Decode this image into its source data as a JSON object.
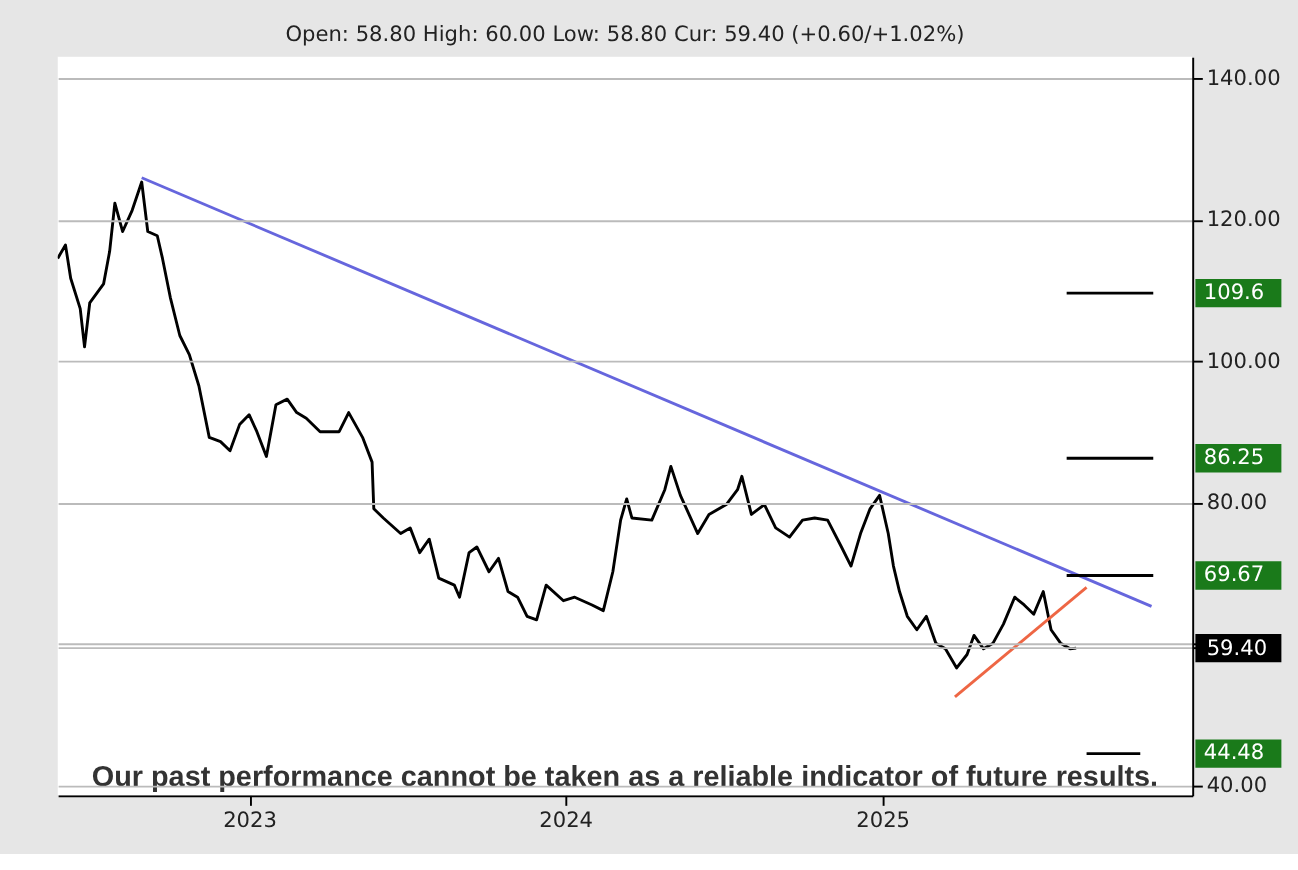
{
  "chart_data": {
    "type": "line",
    "subtitle": "Open: 58.80 High: 60.00 Low: 58.80 Cur: 59.40 (+0.60/+1.02%)",
    "xlim": [
      "2022-05-25",
      "2025-12-25"
    ],
    "xticks": [
      {
        "value": "2023-01-01",
        "label": "2023"
      },
      {
        "value": "2024-01-01",
        "label": "2024"
      },
      {
        "value": "2025-01-01",
        "label": "2025"
      }
    ],
    "ylim": [
      38.6,
      143
    ],
    "yticks": [
      {
        "value": 140,
        "label": "140.00"
      },
      {
        "value": 120,
        "label": "120.00"
      },
      {
        "value": 100,
        "label": "100.00"
      },
      {
        "value": 80,
        "label": "80.00"
      },
      {
        "value": 60,
        "label": null
      },
      {
        "value": 59.4,
        "label": "59.40"
      },
      {
        "value": 40,
        "label": "40.00"
      }
    ],
    "grid": true,
    "line_style": "solid",
    "marker": "none",
    "series": [
      {
        "color": "#000000",
        "x": [
          "2022-05-25",
          "2022-06-03",
          "2022-06-09",
          "2022-06-20",
          "2022-06-25",
          "2022-07-01",
          "2022-07-17",
          "2022-07-24",
          "2022-07-30",
          "2022-08-08",
          "2022-08-19",
          "2022-08-30",
          "2022-09-06",
          "2022-09-17",
          "2022-09-23",
          "2022-10-02",
          "2022-10-13",
          "2022-10-24",
          "2022-11-04",
          "2022-11-16",
          "2022-11-29",
          "2022-12-10",
          "2022-12-21",
          "2023-01-01",
          "2023-01-10",
          "2023-01-21",
          "2023-02-01",
          "2023-02-14",
          "2023-02-25",
          "2023-03-08",
          "2023-03-24",
          "2023-04-15",
          "2023-04-26",
          "2023-05-12",
          "2023-05-23",
          "2023-05-25",
          "2023-06-05",
          "2023-06-25",
          "2023-07-06",
          "2023-07-17",
          "2023-07-28",
          "2023-08-08",
          "2023-08-26",
          "2023-09-01",
          "2023-09-12",
          "2023-09-21",
          "2023-10-05",
          "2023-10-16",
          "2023-10-27",
          "2023-11-07",
          "2023-11-18",
          "2023-11-29",
          "2023-12-10",
          "2023-12-30",
          "2024-01-12",
          "2024-02-01",
          "2024-02-14",
          "2024-02-25",
          "2024-03-05",
          "2024-03-12",
          "2024-03-18",
          "2024-04-10",
          "2024-04-25",
          "2024-05-02",
          "2024-05-13",
          "2024-06-02",
          "2024-06-15",
          "2024-07-05",
          "2024-07-18",
          "2024-07-23",
          "2024-08-03",
          "2024-08-18",
          "2024-08-31",
          "2024-09-16",
          "2024-10-01",
          "2024-10-15",
          "2024-10-30",
          "2024-11-15",
          "2024-11-26",
          "2024-12-07",
          "2024-12-18",
          "2024-12-29",
          "2025-01-08",
          "2025-01-14",
          "2025-01-21",
          "2025-01-30",
          "2025-02-10",
          "2025-02-21",
          "2025-03-04",
          "2025-03-15",
          "2025-03-28",
          "2025-04-09",
          "2025-04-17",
          "2025-04-28",
          "2025-05-09",
          "2025-05-21",
          "2025-06-03",
          "2025-06-14",
          "2025-06-25",
          "2025-07-06",
          "2025-07-15",
          "2025-07-26",
          "2025-08-06",
          "2025-08-13"
        ],
        "values": [
          114.5,
          116.4,
          111.7,
          107.4,
          102,
          108.2,
          110.9,
          115.5,
          122.3,
          118.3,
          121.3,
          125.3,
          118.3,
          117.7,
          114.5,
          109,
          103.6,
          100.9,
          96.5,
          89.2,
          88.6,
          87.3,
          91,
          92.4,
          90,
          86.5,
          93.8,
          94.6,
          92.7,
          91.9,
          90,
          90,
          92.7,
          89.2,
          85.7,
          79.1,
          77.8,
          75.6,
          76.4,
          72.9,
          74.8,
          69.3,
          68.3,
          66.6,
          72.9,
          73.7,
          70.2,
          72.1,
          67.4,
          66.6,
          63.9,
          63.4,
          68.3,
          66.1,
          66.6,
          65.5,
          64.7,
          70.2,
          77.5,
          80.5,
          77.8,
          77.5,
          81.8,
          85.1,
          81,
          75.6,
          78.3,
          79.7,
          81.8,
          83.7,
          78.3,
          79.7,
          76.4,
          75.1,
          77.5,
          77.8,
          77.5,
          73.7,
          71,
          75.6,
          79.1,
          81,
          75.6,
          71,
          67.4,
          63.9,
          62,
          63.9,
          60.1,
          59.3,
          56.6,
          58.5,
          61.2,
          59.3,
          60.1,
          62.8,
          66.6,
          65.5,
          64.2,
          67.4,
          62,
          60.1,
          59.3,
          59.4
        ]
      },
      {
        "color": "#6666dd",
        "x": [
          "2022-08-30",
          "2025-11-08"
        ],
        "values": [
          125.9,
          65.3
        ]
      },
      {
        "color": "#ee6644",
        "x": [
          "2025-03-26",
          "2025-08-25"
        ],
        "values": [
          52.5,
          68.0
        ]
      },
      {
        "name": "109.6",
        "color": "#000000",
        "x": [
          "2025-08-02",
          "2025-11-10"
        ],
        "values": [
          109.6,
          109.6
        ]
      },
      {
        "name": "86.25",
        "color": "#000000",
        "x": [
          "2025-08-02",
          "2025-11-10"
        ],
        "values": [
          86.25,
          86.25
        ]
      },
      {
        "name": "69.67",
        "color": "#000000",
        "x": [
          "2025-08-02",
          "2025-11-10"
        ],
        "values": [
          69.67,
          69.67
        ]
      },
      {
        "name": "44.48",
        "color": "#000000",
        "x": [
          "2025-08-25",
          "2025-10-26"
        ],
        "values": [
          44.48,
          44.48
        ]
      }
    ],
    "annotations": [
      "Our past performance cannot be taken as a reliable indicator of future results."
    ]
  }
}
